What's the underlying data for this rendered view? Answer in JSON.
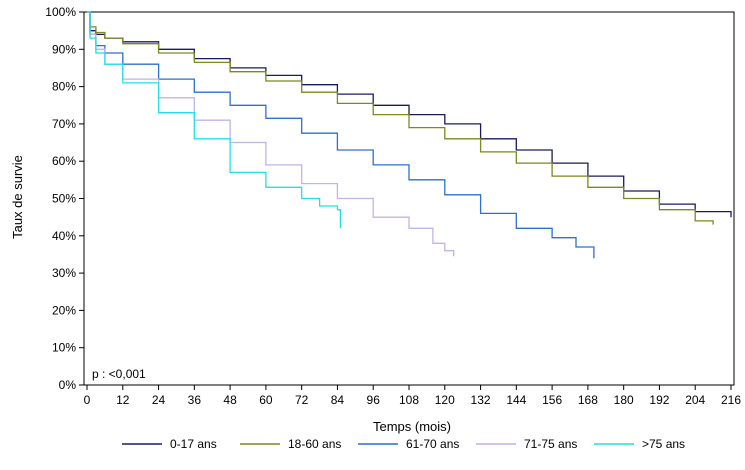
{
  "chart_data": {
    "type": "line",
    "xlabel": "Temps (mois)",
    "ylabel": "Taux de survie",
    "xlim": [
      0,
      216
    ],
    "ylim": [
      0,
      100
    ],
    "x_ticks": [
      0,
      12,
      24,
      36,
      48,
      60,
      72,
      84,
      96,
      108,
      120,
      132,
      144,
      156,
      168,
      180,
      192,
      204,
      216
    ],
    "y_ticks": [
      0,
      10,
      20,
      30,
      40,
      50,
      60,
      70,
      80,
      90,
      100
    ],
    "y_tick_labels": [
      "0%",
      "10%",
      "20%",
      "30%",
      "40%",
      "50%",
      "60%",
      "70%",
      "80%",
      "90%",
      "100%"
    ],
    "annotation": "p : <0,001",
    "legend_position": "bottom",
    "grid": false,
    "series": [
      {
        "name": "0-17 ans",
        "color": "#1a1a5e",
        "points": [
          [
            0,
            100
          ],
          [
            1,
            95
          ],
          [
            3,
            94
          ],
          [
            6,
            93
          ],
          [
            12,
            92
          ],
          [
            24,
            90
          ],
          [
            36,
            87.5
          ],
          [
            48,
            85
          ],
          [
            60,
            83
          ],
          [
            72,
            80.5
          ],
          [
            84,
            78
          ],
          [
            96,
            75
          ],
          [
            108,
            72.5
          ],
          [
            120,
            70
          ],
          [
            132,
            66
          ],
          [
            144,
            63
          ],
          [
            156,
            59.5
          ],
          [
            168,
            56
          ],
          [
            180,
            52
          ],
          [
            192,
            48.5
          ],
          [
            204,
            46.5
          ],
          [
            216,
            45
          ]
        ]
      },
      {
        "name": "18-60 ans",
        "color": "#7a8a1e",
        "points": [
          [
            0,
            100
          ],
          [
            1,
            96
          ],
          [
            3,
            94.5
          ],
          [
            6,
            93
          ],
          [
            12,
            91.5
          ],
          [
            24,
            89
          ],
          [
            36,
            86.5
          ],
          [
            48,
            84
          ],
          [
            60,
            81.5
          ],
          [
            72,
            78.5
          ],
          [
            84,
            75.5
          ],
          [
            96,
            72.5
          ],
          [
            108,
            69
          ],
          [
            120,
            66
          ],
          [
            132,
            62.5
          ],
          [
            144,
            59.5
          ],
          [
            156,
            56
          ],
          [
            168,
            53
          ],
          [
            180,
            50
          ],
          [
            192,
            47
          ],
          [
            204,
            44
          ],
          [
            210,
            43
          ]
        ]
      },
      {
        "name": "61-70 ans",
        "color": "#2e6fd0",
        "points": [
          [
            0,
            100
          ],
          [
            1,
            94
          ],
          [
            3,
            91
          ],
          [
            6,
            89
          ],
          [
            12,
            86
          ],
          [
            24,
            82
          ],
          [
            36,
            78.5
          ],
          [
            48,
            75
          ],
          [
            60,
            71.5
          ],
          [
            72,
            67.5
          ],
          [
            84,
            63
          ],
          [
            96,
            59
          ],
          [
            108,
            55
          ],
          [
            120,
            51
          ],
          [
            132,
            46
          ],
          [
            144,
            42
          ],
          [
            156,
            39.5
          ],
          [
            164,
            37
          ],
          [
            170,
            34
          ]
        ]
      },
      {
        "name": "71-75 ans",
        "color": "#c4b2e6",
        "points": [
          [
            0,
            100
          ],
          [
            1,
            94
          ],
          [
            3,
            90
          ],
          [
            6,
            86
          ],
          [
            12,
            82
          ],
          [
            24,
            77
          ],
          [
            36,
            71
          ],
          [
            48,
            65
          ],
          [
            60,
            59
          ],
          [
            72,
            54
          ],
          [
            84,
            50
          ],
          [
            96,
            45
          ],
          [
            108,
            42
          ],
          [
            116,
            38
          ],
          [
            120,
            36
          ],
          [
            123,
            34.5
          ]
        ]
      },
      {
        "name": ">75 ans",
        "color": "#22e0e0",
        "points": [
          [
            0,
            100
          ],
          [
            1,
            93
          ],
          [
            3,
            89
          ],
          [
            6,
            86
          ],
          [
            12,
            81
          ],
          [
            24,
            73
          ],
          [
            36,
            66
          ],
          [
            48,
            57
          ],
          [
            60,
            53
          ],
          [
            72,
            50
          ],
          [
            78,
            48
          ],
          [
            84,
            47
          ],
          [
            85,
            42
          ]
        ]
      }
    ]
  }
}
